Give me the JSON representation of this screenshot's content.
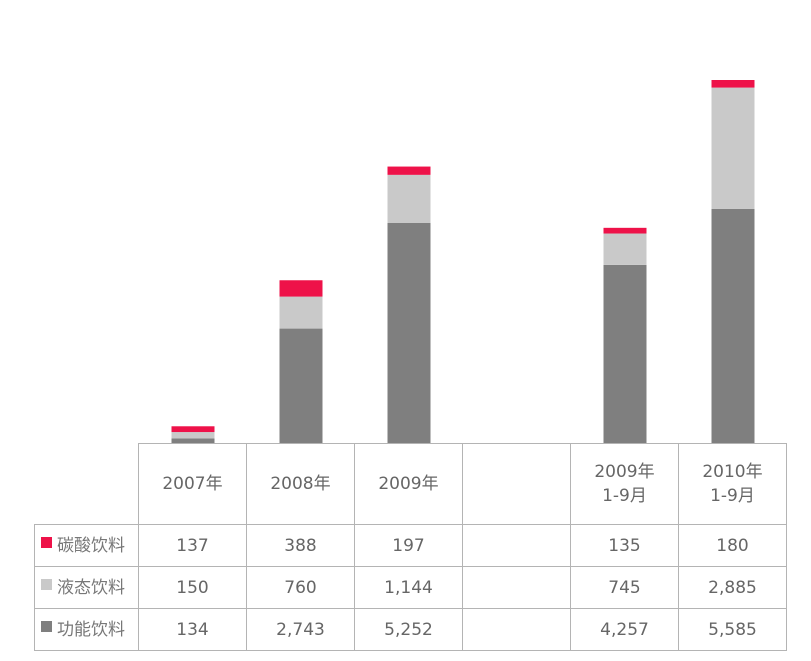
{
  "colors": {
    "carbonated": "#ee1249",
    "liquid": "#c9c9c9",
    "functional": "#7f7f7f"
  },
  "chart_data": {
    "type": "bar",
    "stacked": true,
    "categories": [
      "2007年",
      "2008年",
      "2009年",
      "",
      "2009年\n1-9月",
      "2010年\n1-9月"
    ],
    "series": [
      {
        "name": "功能饮料",
        "values": [
          134,
          2743,
          5252,
          null,
          4257,
          5585
        ]
      },
      {
        "name": "液态饮料",
        "values": [
          150,
          760,
          1144,
          null,
          745,
          2885
        ]
      },
      {
        "name": "碳酸饮料",
        "values": [
          137,
          388,
          197,
          null,
          135,
          180
        ]
      }
    ],
    "table_display": [
      [
        "137",
        "388",
        "197",
        "",
        "135",
        "180"
      ],
      [
        "150",
        "760",
        "1,144",
        "",
        "745",
        "2,885"
      ],
      [
        "134",
        "2,743",
        "5,252",
        "",
        "4,257",
        "5,585"
      ]
    ],
    "legend_placement": "data-table"
  }
}
